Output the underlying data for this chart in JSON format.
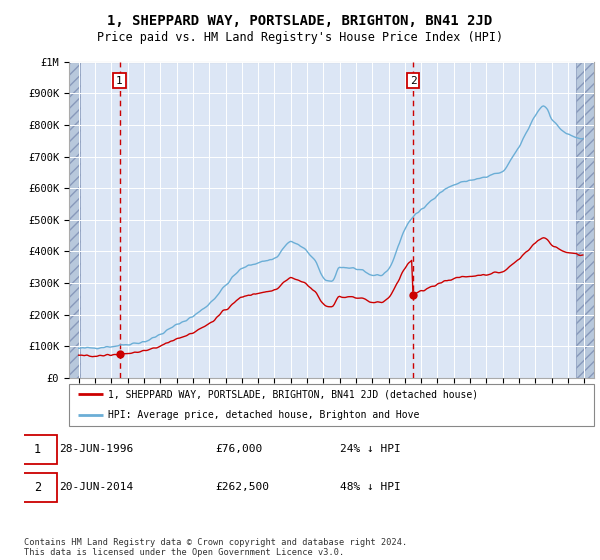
{
  "title": "1, SHEPPARD WAY, PORTSLADE, BRIGHTON, BN41 2JD",
  "subtitle": "Price paid vs. HM Land Registry's House Price Index (HPI)",
  "sale1_x": 1996.5,
  "sale1_price": 76000,
  "sale2_x": 2014.5,
  "sale2_price": 262500,
  "legend_line1": "1, SHEPPARD WAY, PORTSLADE, BRIGHTON, BN41 2JD (detached house)",
  "legend_line2": "HPI: Average price, detached house, Brighton and Hove",
  "ann1_box": "1",
  "ann1_text": "28-JUN-1996",
  "ann1_price": "£76,000",
  "ann1_hpi": "24% ↓ HPI",
  "ann2_box": "2",
  "ann2_text": "20-JUN-2014",
  "ann2_price": "£262,500",
  "ann2_hpi": "48% ↓ HPI",
  "footer": "Contains HM Land Registry data © Crown copyright and database right 2024.\nThis data is licensed under the Open Government Licence v3.0.",
  "hpi_color": "#6baed6",
  "sale_color": "#cc0000",
  "plot_bg": "#dce6f5",
  "hatch_color": "#b8c8dc"
}
